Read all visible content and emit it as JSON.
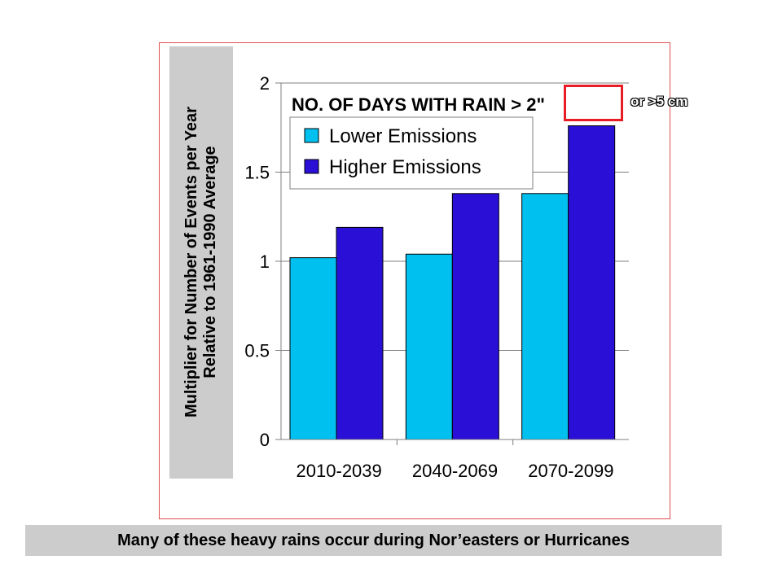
{
  "chart_data": {
    "type": "bar",
    "title": "NO. OF DAYS WITH RAIN > 2\"",
    "ylabel": [
      "Multiplier for Number of Events per Year",
      "Relative to 1961-1990 Average"
    ],
    "xlabel": "",
    "categories": [
      "2010-2039",
      "2040-2069",
      "2070-2099"
    ],
    "series": [
      {
        "name": "Lower Emissions",
        "values": [
          1.02,
          1.04,
          1.38
        ],
        "color": "#00c0f0"
      },
      {
        "name": "Higher Emissions",
        "values": [
          1.19,
          1.38,
          1.76
        ],
        "color": "#2a0fd6"
      }
    ],
    "ylim": [
      0,
      2
    ],
    "yticks": [
      "0",
      "0.5",
      "1",
      "1.5",
      "2"
    ],
    "grid": true,
    "legend_position": "top-left",
    "annotation": "or >5 cm"
  },
  "caption": "Many of these heavy rains occur during Nor’easters or Hurricanes",
  "colors": {
    "frame": "#e05050",
    "highlight": "#e81c24",
    "label_box": "#cccccc"
  }
}
